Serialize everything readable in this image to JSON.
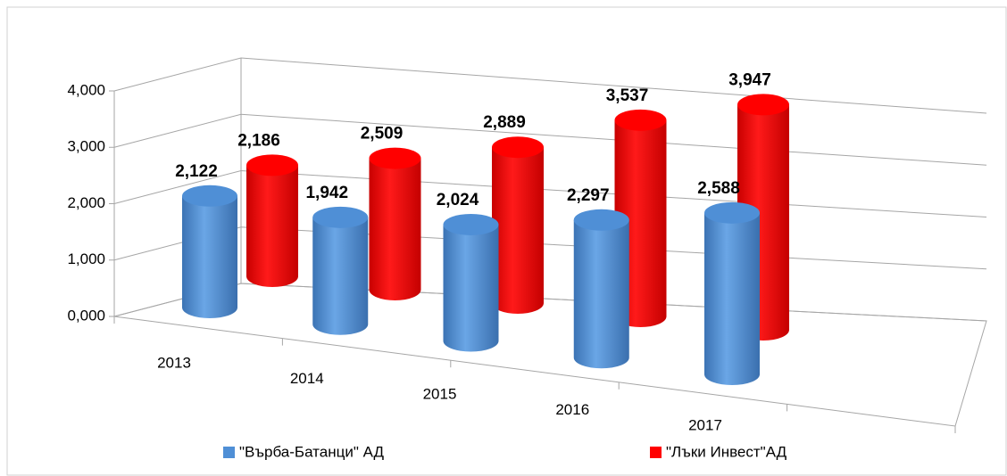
{
  "chart_data": {
    "type": "bar3d-cylinder",
    "categories": [
      "2013",
      "2014",
      "2015",
      "2016",
      "2017"
    ],
    "series": [
      {
        "name": "\"Върба-Батанци\" АД",
        "color": "#4f8fd6",
        "values": [
          2.122,
          1.942,
          2.024,
          2.297,
          2.588
        ],
        "value_labels": [
          "2,122",
          "1,942",
          "2,024",
          "2,297",
          "2,588"
        ]
      },
      {
        "name": "\"Лъки Инвест\"АД",
        "color": "#ff0000",
        "values": [
          2.186,
          2.509,
          2.889,
          3.537,
          3.947
        ],
        "value_labels": [
          "2,186",
          "2,509",
          "2,889",
          "3,537",
          "3,947"
        ]
      }
    ],
    "ylim": [
      0,
      4
    ],
    "yticks": [
      {
        "value": 0,
        "label": "0,000"
      },
      {
        "value": 1,
        "label": "1,000"
      },
      {
        "value": 2,
        "label": "2,000"
      },
      {
        "value": 3,
        "label": "3,000"
      },
      {
        "value": 4,
        "label": "4,000"
      }
    ],
    "grid": true,
    "legend": "bottom"
  }
}
